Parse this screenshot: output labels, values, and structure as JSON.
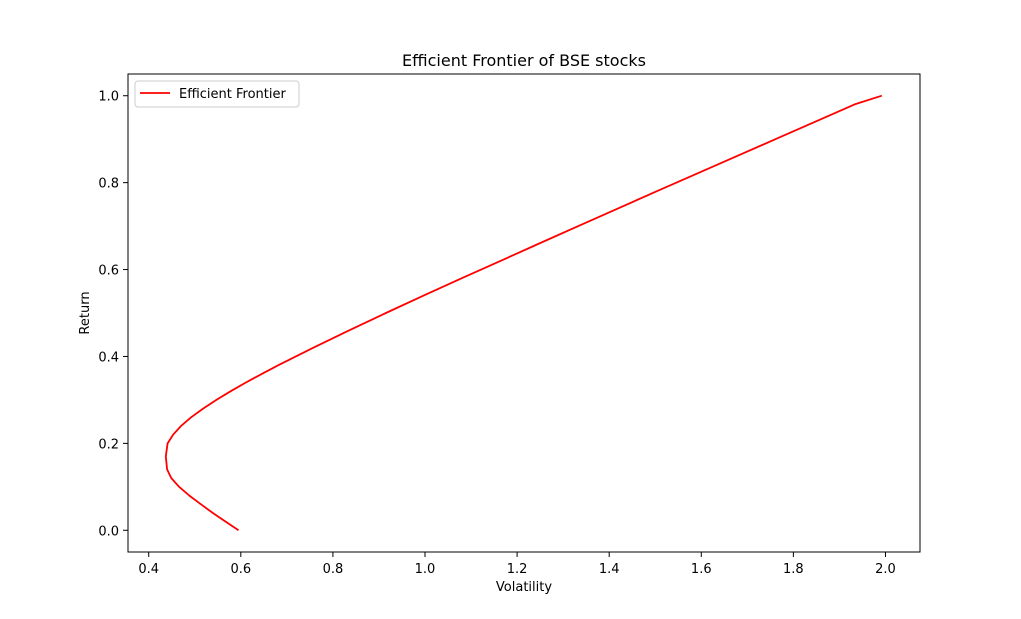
{
  "chart_data": {
    "type": "line",
    "title": "Efficient Frontier of BSE stocks",
    "xlabel": "Volatility",
    "ylabel": "Return",
    "xlim": [
      0.355,
      2.075
    ],
    "ylim": [
      -0.05,
      1.05
    ],
    "xticks": [
      0.4,
      0.6,
      0.8,
      1.0,
      1.2,
      1.4,
      1.6,
      1.8,
      2.0
    ],
    "xtick_labels": [
      "0.4",
      "0.6",
      "0.8",
      "1.0",
      "1.2",
      "1.4",
      "1.6",
      "1.8",
      "2.0"
    ],
    "yticks": [
      0.0,
      0.2,
      0.4,
      0.6,
      0.8,
      1.0
    ],
    "ytick_labels": [
      "0.0",
      "0.2",
      "0.4",
      "0.6",
      "0.8",
      "1.0"
    ],
    "grid": false,
    "legend_position": "upper-left",
    "series": [
      {
        "name": "Efficient Frontier",
        "color": "#ff0000",
        "x": [
          0.595,
          0.567,
          0.539,
          0.513,
          0.488,
          0.466,
          0.449,
          0.44,
          0.437,
          0.441,
          0.453,
          0.47,
          0.492,
          0.518,
          0.547,
          0.578,
          0.611,
          0.646,
          0.682,
          0.757,
          0.835,
          0.915,
          0.997,
          1.08,
          1.164,
          1.248,
          1.333,
          1.418,
          1.503,
          1.589,
          1.675,
          1.761,
          1.847,
          1.933,
          1.992
        ],
        "y": [
          0.0,
          0.02,
          0.04,
          0.06,
          0.08,
          0.1,
          0.12,
          0.14,
          0.17,
          0.2,
          0.22,
          0.24,
          0.26,
          0.28,
          0.3,
          0.32,
          0.34,
          0.36,
          0.38,
          0.42,
          0.46,
          0.5,
          0.54,
          0.58,
          0.62,
          0.66,
          0.7,
          0.74,
          0.78,
          0.82,
          0.86,
          0.9,
          0.94,
          0.98,
          1.0
        ]
      }
    ]
  }
}
